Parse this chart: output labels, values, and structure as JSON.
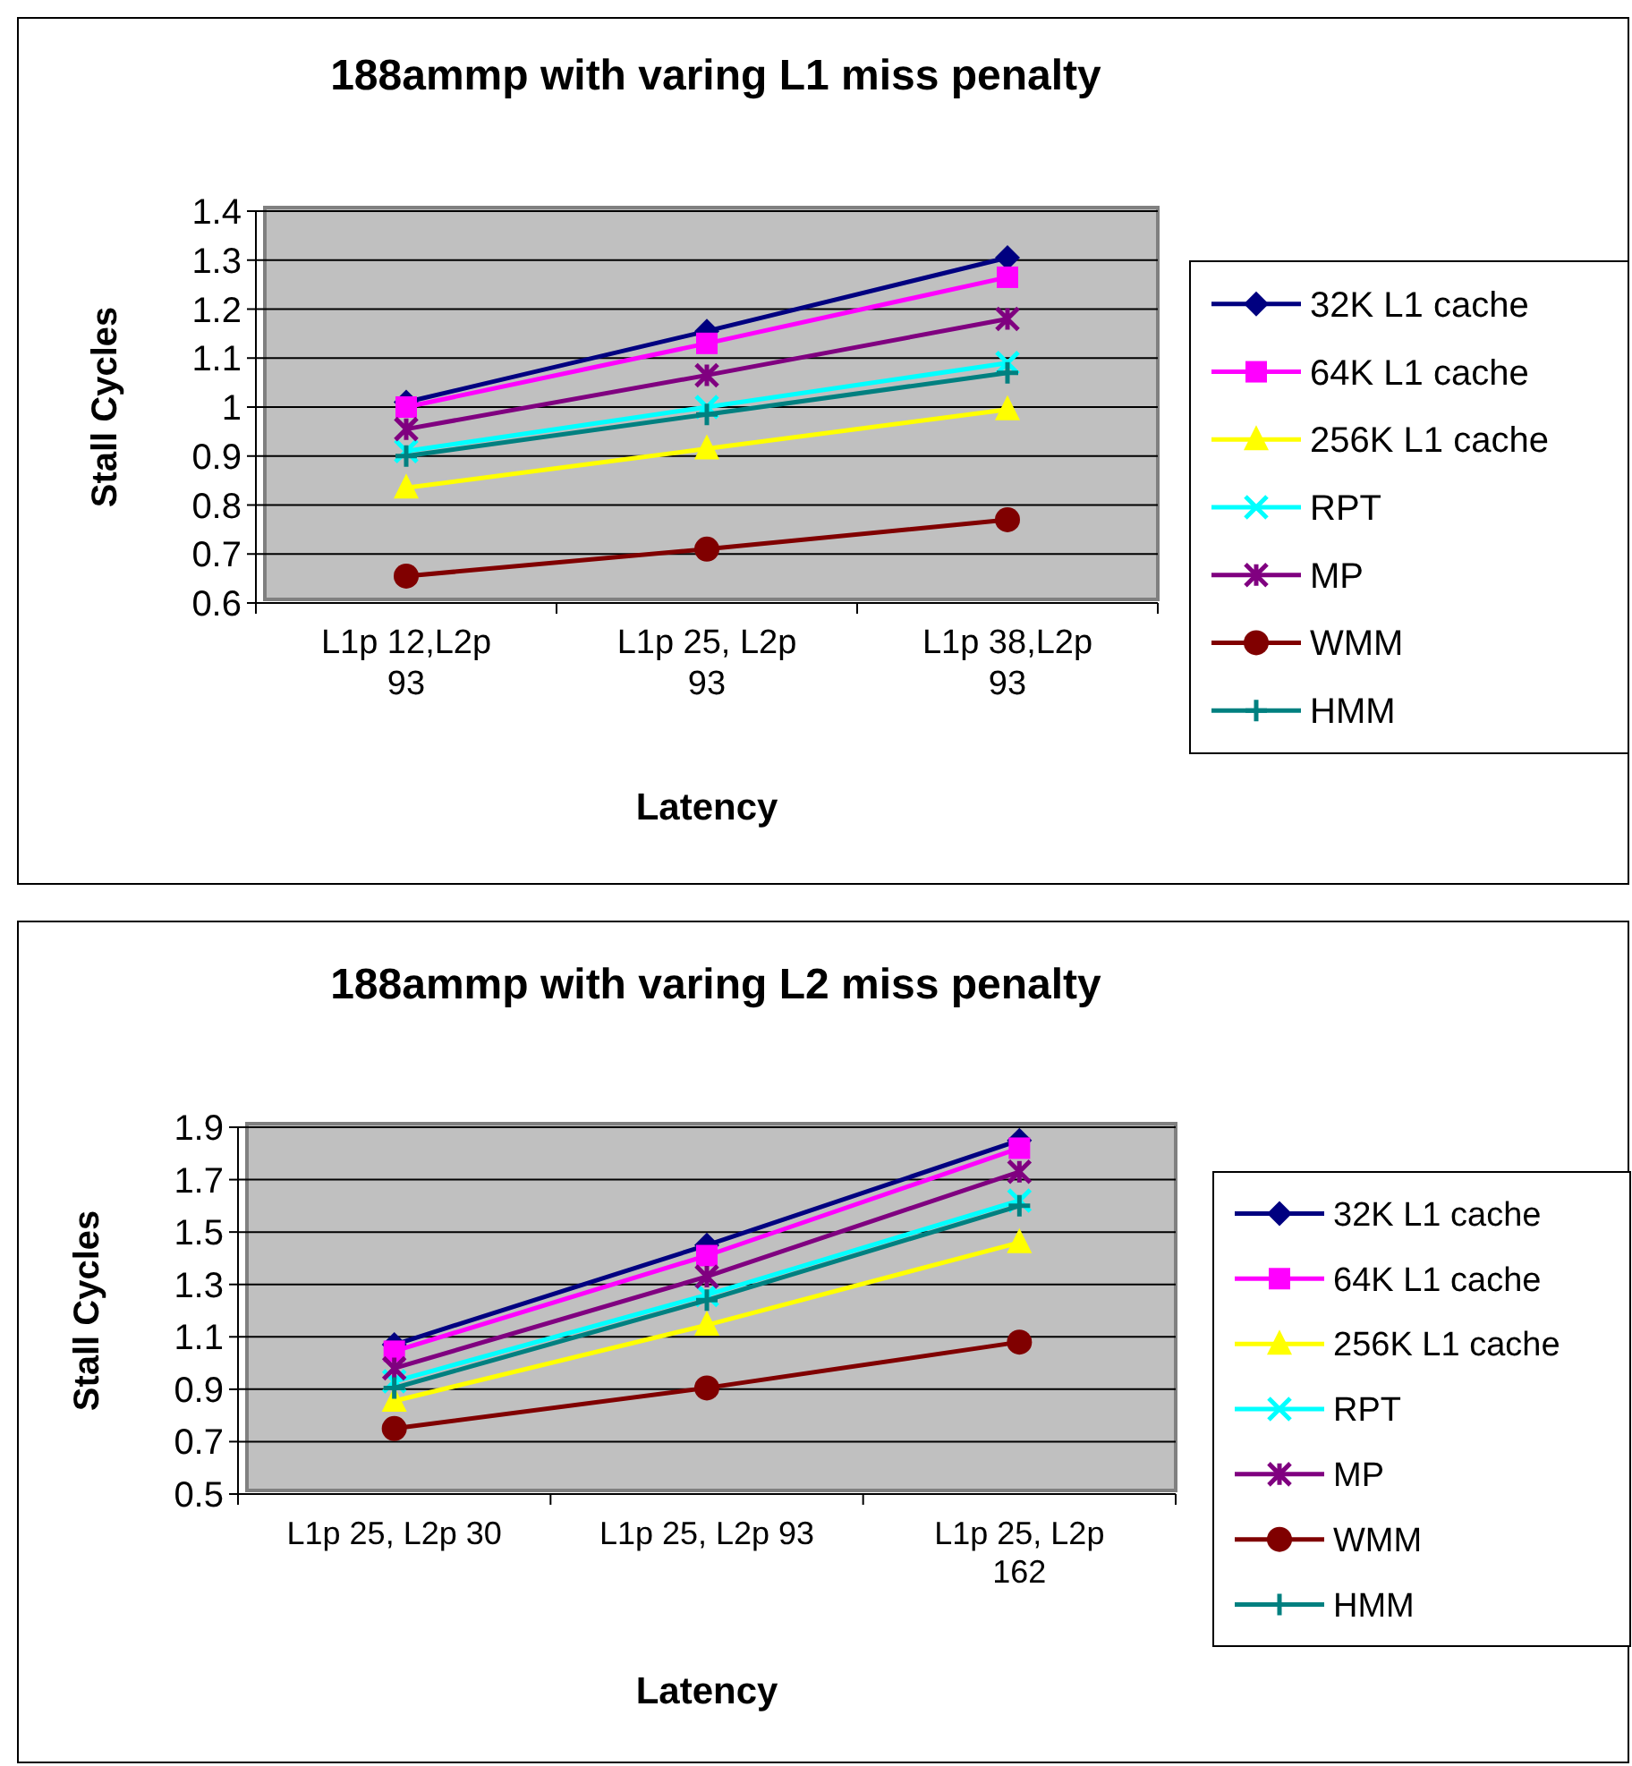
{
  "chart_data": [
    {
      "type": "line",
      "title": "188ammp with varing L1 miss penalty",
      "xlabel": "Latency",
      "ylabel": "Stall Cycles",
      "categories": [
        "L1p 12,L2p 93",
        "L1p 25, L2p 93",
        "L1p 38,L2p 93"
      ],
      "ylim": [
        0.6,
        1.4
      ],
      "yticks": [
        0.6,
        0.7,
        0.8,
        0.9,
        1,
        1.1,
        1.2,
        1.3,
        1.4
      ],
      "grid": "y",
      "legend": "right",
      "series": [
        {
          "name": "32K L1 cache",
          "color": "#000080",
          "marker": "diamond",
          "values": [
            1.01,
            1.155,
            1.305
          ]
        },
        {
          "name": "64K L1 cache",
          "color": "#ff00ff",
          "marker": "square",
          "values": [
            1.0,
            1.13,
            1.265
          ]
        },
        {
          "name": "256K L1 cache",
          "color": "#ffff00",
          "marker": "triangle",
          "values": [
            0.835,
            0.915,
            0.995
          ]
        },
        {
          "name": "RPT",
          "color": "#00ffff",
          "marker": "x",
          "values": [
            0.91,
            1.0,
            1.09
          ]
        },
        {
          "name": "MP",
          "color": "#800080",
          "marker": "cross",
          "values": [
            0.955,
            1.065,
            1.18
          ]
        },
        {
          "name": "WMM",
          "color": "#800000",
          "marker": "circle",
          "values": [
            0.655,
            0.71,
            0.77
          ]
        },
        {
          "name": "HMM",
          "color": "#008080",
          "marker": "plus",
          "values": [
            0.9,
            0.985,
            1.07
          ]
        }
      ]
    },
    {
      "type": "line",
      "title": "188ammp with varing L2 miss penalty",
      "xlabel": "Latency",
      "ylabel": "Stall Cycles",
      "categories": [
        "L1p 25, L2p 30",
        "L1p 25, L2p 93",
        "L1p 25, L2p 162"
      ],
      "ylim": [
        0.5,
        1.9
      ],
      "yticks": [
        0.5,
        0.7,
        0.9,
        1.1,
        1.3,
        1.5,
        1.7,
        1.9
      ],
      "grid": "y",
      "legend": "right",
      "series": [
        {
          "name": "32K L1 cache",
          "color": "#000080",
          "marker": "diamond",
          "values": [
            1.07,
            1.45,
            1.85
          ]
        },
        {
          "name": "64K L1 cache",
          "color": "#ff00ff",
          "marker": "square",
          "values": [
            1.045,
            1.41,
            1.82
          ]
        },
        {
          "name": "256K L1 cache",
          "color": "#ffff00",
          "marker": "triangle",
          "values": [
            0.855,
            1.145,
            1.46
          ]
        },
        {
          "name": "RPT",
          "color": "#00ffff",
          "marker": "x",
          "values": [
            0.93,
            1.26,
            1.62
          ]
        },
        {
          "name": "MP",
          "color": "#800080",
          "marker": "cross",
          "values": [
            0.98,
            1.33,
            1.73
          ]
        },
        {
          "name": "WMM",
          "color": "#800000",
          "marker": "circle",
          "values": [
            0.75,
            0.905,
            1.08
          ]
        },
        {
          "name": "HMM",
          "color": "#008080",
          "marker": "plus",
          "values": [
            0.905,
            1.24,
            1.6
          ]
        }
      ]
    }
  ]
}
